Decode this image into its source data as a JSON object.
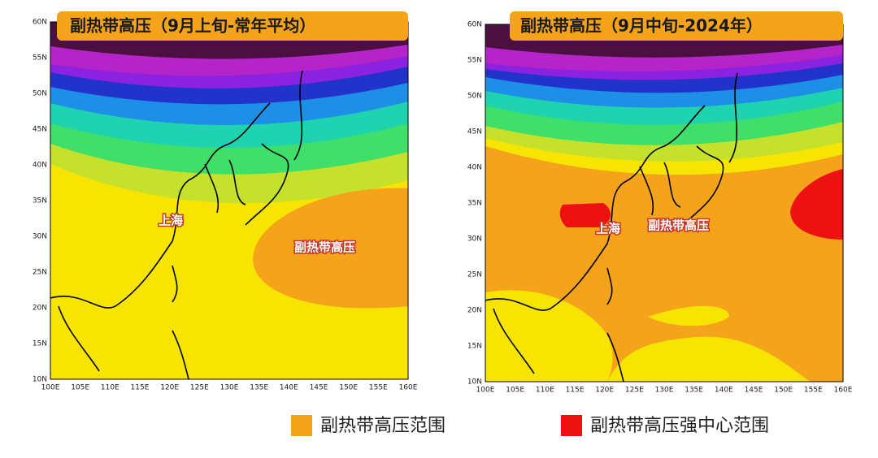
{
  "panels": [
    {
      "title": "副热带高压（9月上旬-常年平均）",
      "lat_labels": [
        "60N",
        "55N",
        "50N",
        "45N",
        "40N",
        "35N",
        "30N",
        "25N",
        "20N",
        "15N",
        "10N"
      ],
      "lon_labels": [
        "100E",
        "105E",
        "110E",
        "115E",
        "120E",
        "125E",
        "130E",
        "135E",
        "140E",
        "145E",
        "150E",
        "155E",
        "160E"
      ],
      "labels": [
        "上海",
        "副热带高压"
      ]
    },
    {
      "title": "副热带高压（9月中旬-2024年）",
      "lat_labels": [
        "60N",
        "55N",
        "50N",
        "45N",
        "40N",
        "35N",
        "30N",
        "25N",
        "20N",
        "15N",
        "10N"
      ],
      "lon_labels": [
        "100E",
        "105E",
        "110E",
        "115E",
        "120E",
        "125E",
        "130E",
        "135E",
        "140E",
        "145E",
        "150E",
        "155E",
        "160E"
      ],
      "labels": [
        "上海",
        "副热带高压"
      ]
    }
  ],
  "legend": [
    {
      "label": "副热带高压范围",
      "color": "#f5a31a"
    },
    {
      "label": "副热带高压强中心范围",
      "color": "#ee1111"
    }
  ]
}
